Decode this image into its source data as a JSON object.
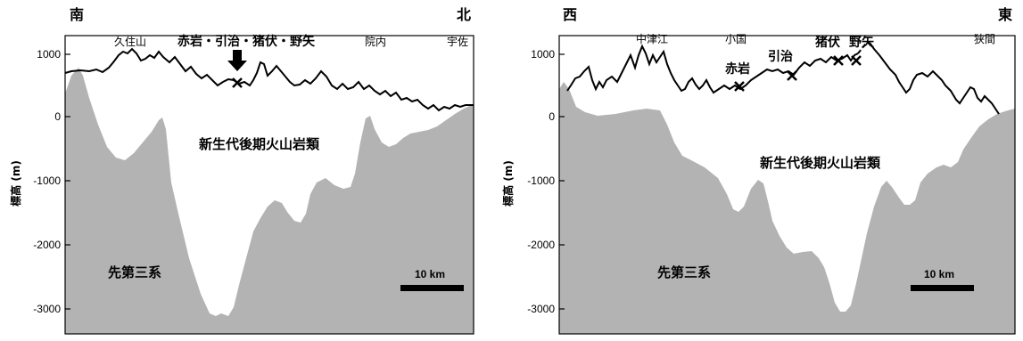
{
  "left_panel": {
    "direction_left": "南",
    "direction_right": "北",
    "place_labels": [
      "久住山",
      "院内",
      "宇佐"
    ],
    "highlight_label": "赤岩・引治・猪伏・野矢",
    "volcanic_label": "新生代後期火山岩類",
    "basement_label": "先第三系",
    "scale_label": "10 km"
  },
  "right_panel": {
    "direction_left": "西",
    "direction_right": "東",
    "place_labels": [
      "中津江",
      "小国",
      "狭間"
    ],
    "site_labels": [
      "赤岩",
      "引治",
      "猪伏",
      "野矢"
    ],
    "volcanic_label": "新生代後期火山岩類",
    "basement_label": "先第三系",
    "scale_label": "10 km"
  },
  "y_axis": {
    "label": "標高 (m)",
    "ticks": [
      "1000",
      "0",
      "-1000",
      "-2000",
      "-3000"
    ]
  },
  "colors": {
    "basement_fill": "#b3b3b3",
    "line": "#000000"
  }
}
